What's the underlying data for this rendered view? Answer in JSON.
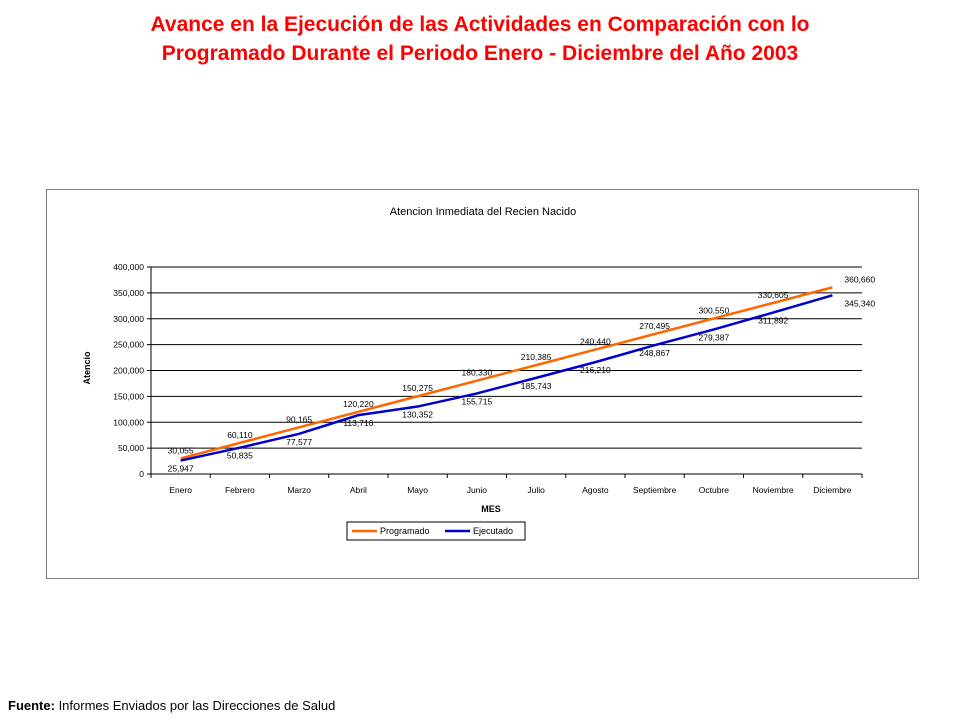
{
  "slide": {
    "title_line1": "Avance en la Ejecución de las Actividades en Comparación con lo",
    "title_line2": "Programado Durante el Periodo Enero - Diciembre del Año 2003"
  },
  "footer": {
    "label": "Fuente:",
    "text": " Informes Enviados por las Direcciones de Salud"
  },
  "colors": {
    "programado": "#ff6600",
    "ejecutado": "#0000cc",
    "title": "#ff0000",
    "gridline": "#000000"
  },
  "chart_data": {
    "type": "line",
    "title": "Atencion Inmediata del Recien Nacido",
    "xlabel": "MES",
    "ylabel": "Atencio",
    "ylim": [
      0,
      400000
    ],
    "yticks": [
      "0",
      "50,000",
      "100,000",
      "150,000",
      "200,000",
      "250,000",
      "300,000",
      "350,000",
      "400,000"
    ],
    "ytick_values": [
      0,
      50000,
      100000,
      150000,
      200000,
      250000,
      300000,
      350000,
      400000
    ],
    "grid": true,
    "legend_position": "bottom",
    "categories": [
      "Enero",
      "Febrero",
      "Marzo",
      "Abril",
      "Mayo",
      "Junio",
      "Julio",
      "Agosto",
      "Septiembre",
      "Octubre",
      "Noviembre",
      "Diciembre"
    ],
    "series": [
      {
        "name": "Programado",
        "values": [
          30055,
          60110,
          90165,
          120220,
          150275,
          180330,
          210385,
          240440,
          270495,
          300550,
          330605,
          360660
        ],
        "labels": [
          "30,055",
          "60,110",
          "90,165",
          "120,220",
          "150,275",
          "180,330",
          "210,385",
          "240,440",
          "270,495",
          "300,550",
          "330,605",
          "360,660"
        ]
      },
      {
        "name": "Ejecutado",
        "values": [
          25947,
          50835,
          77577,
          113716,
          130352,
          155715,
          185743,
          216210,
          248867,
          279387,
          311892,
          345340
        ],
        "labels": [
          "25,947",
          "50,835",
          "77,577",
          "113,716",
          "130,352",
          "155,715",
          "185,743",
          "216,210",
          "248,867",
          "279,387",
          "311,892",
          "345,340"
        ]
      }
    ]
  }
}
